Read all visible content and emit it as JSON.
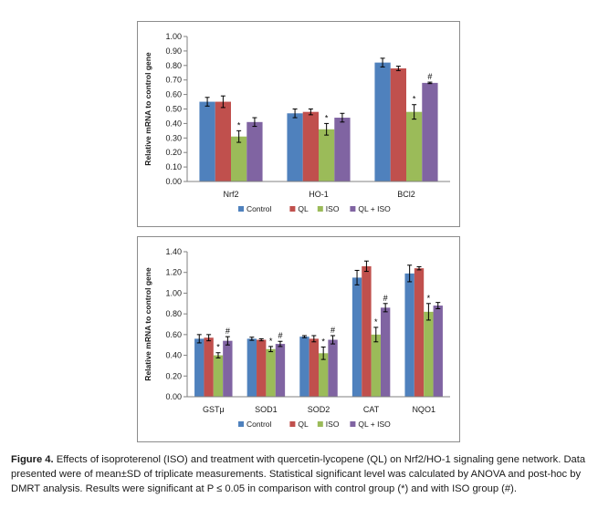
{
  "colors": {
    "Control": "#4f81bd",
    "QL": "#c0504d",
    "ISO": "#9bbb59",
    "QL + ISO": "#8064a2"
  },
  "chart_data": [
    {
      "type": "bar",
      "title": "",
      "xlabel": "",
      "ylabel": "Relative mRNA to control gene",
      "ylim": [
        0,
        1.0
      ],
      "yticks": [
        "0.00",
        "0.10",
        "0.20",
        "0.30",
        "0.40",
        "0.50",
        "0.60",
        "0.70",
        "0.80",
        "0.90",
        "1.00"
      ],
      "categories": [
        "Nrf2",
        "HO-1",
        "BCl2"
      ],
      "legend_position": "bottom",
      "grid": false,
      "series": [
        {
          "name": "Control",
          "values": [
            0.55,
            0.47,
            0.82
          ],
          "errors": [
            0.03,
            0.03,
            0.03
          ],
          "marks": [
            "",
            "",
            ""
          ]
        },
        {
          "name": "QL",
          "values": [
            0.55,
            0.48,
            0.78
          ],
          "errors": [
            0.04,
            0.02,
            0.015
          ],
          "marks": [
            "",
            "",
            ""
          ]
        },
        {
          "name": "ISO",
          "values": [
            0.31,
            0.36,
            0.48
          ],
          "errors": [
            0.04,
            0.04,
            0.05
          ],
          "marks": [
            "*",
            "*",
            "*"
          ]
        },
        {
          "name": "QL + ISO",
          "values": [
            0.41,
            0.44,
            0.68
          ],
          "errors": [
            0.03,
            0.03,
            0.005
          ],
          "marks": [
            "",
            "",
            "#"
          ]
        }
      ]
    },
    {
      "type": "bar",
      "title": "",
      "xlabel": "",
      "ylabel": "Relative mRNA to control gene",
      "ylim": [
        0,
        1.4
      ],
      "yticks": [
        "0.00",
        "0.20",
        "0.40",
        "0.60",
        "0.80",
        "1.00",
        "1.20",
        "1.40"
      ],
      "categories": [
        "GSTμ",
        "SOD1",
        "SOD2",
        "CAT",
        "NQO1"
      ],
      "legend_position": "bottom",
      "grid": false,
      "series": [
        {
          "name": "Control",
          "values": [
            0.56,
            0.56,
            0.58,
            1.15,
            1.19
          ],
          "errors": [
            0.04,
            0.015,
            0.01,
            0.07,
            0.08
          ],
          "marks": [
            "",
            "",
            "",
            "",
            ""
          ]
        },
        {
          "name": "QL",
          "values": [
            0.57,
            0.55,
            0.56,
            1.26,
            1.24
          ],
          "errors": [
            0.03,
            0.01,
            0.03,
            0.05,
            0.015
          ],
          "marks": [
            "",
            "",
            "",
            "",
            ""
          ]
        },
        {
          "name": "ISO",
          "values": [
            0.4,
            0.46,
            0.42,
            0.6,
            0.82
          ],
          "errors": [
            0.025,
            0.025,
            0.06,
            0.07,
            0.08
          ],
          "marks": [
            "*",
            "*",
            "*",
            "*",
            "*"
          ]
        },
        {
          "name": "QL + ISO",
          "values": [
            0.54,
            0.51,
            0.55,
            0.86,
            0.88
          ],
          "errors": [
            0.04,
            0.025,
            0.04,
            0.04,
            0.03
          ],
          "marks": [
            "#",
            "#",
            "#",
            "#",
            ""
          ]
        }
      ]
    }
  ],
  "caption": {
    "label": "Figure 4.",
    "text": "Effects of isoproterenol (ISO) and treatment with quercetin-lycopene (QL) on Nrf2/HO-1 signaling gene network. Data presented were of mean±SD of triplicate measurements. Statistical significant level was calculated by ANOVA and post-hoc by DMRT analysis. Results were significant at P ≤ 0.05 in comparison with control group (*) and with ISO group (#)."
  }
}
